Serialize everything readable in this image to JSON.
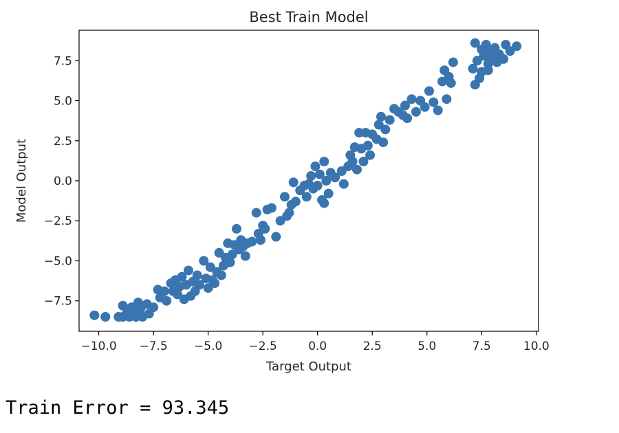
{
  "chart_data": {
    "type": "scatter",
    "title": "Best Train Model",
    "xlabel": "Target Output",
    "ylabel": "Model Output",
    "xlim": [
      -10.9,
      10.1
    ],
    "ylim": [
      -9.4,
      9.4
    ],
    "xticks": [
      -10.0,
      -7.5,
      -5.0,
      -2.5,
      0.0,
      2.5,
      5.0,
      7.5,
      10.0
    ],
    "xtick_labels": [
      "−10.0",
      "−7.5",
      "−5.0",
      "−2.5",
      "0.0",
      "2.5",
      "5.0",
      "7.5",
      "10.0"
    ],
    "yticks": [
      -7.5,
      -5.0,
      -2.5,
      0.0,
      2.5,
      5.0,
      7.5
    ],
    "ytick_labels": [
      "−7.5",
      "−5.0",
      "−2.5",
      "0.0",
      "2.5",
      "5.0",
      "7.5"
    ],
    "grid": false,
    "marker_color": "#3a75b0",
    "points": [
      [
        -10.2,
        -8.4
      ],
      [
        -9.7,
        -8.5
      ],
      [
        -9.1,
        -8.5
      ],
      [
        -8.9,
        -8.5
      ],
      [
        -8.9,
        -7.8
      ],
      [
        -8.7,
        -8.2
      ],
      [
        -8.6,
        -8.5
      ],
      [
        -8.5,
        -7.9
      ],
      [
        -8.4,
        -8.1
      ],
      [
        -8.3,
        -8.5
      ],
      [
        -8.2,
        -7.6
      ],
      [
        -8.1,
        -8.0
      ],
      [
        -8.0,
        -8.5
      ],
      [
        -7.8,
        -7.7
      ],
      [
        -7.7,
        -8.3
      ],
      [
        -7.5,
        -7.9
      ],
      [
        -7.3,
        -6.8
      ],
      [
        -7.2,
        -7.3
      ],
      [
        -7.0,
        -6.9
      ],
      [
        -6.9,
        -7.5
      ],
      [
        -6.7,
        -6.4
      ],
      [
        -6.6,
        -6.9
      ],
      [
        -6.5,
        -6.2
      ],
      [
        -6.4,
        -7.1
      ],
      [
        -6.3,
        -6.6
      ],
      [
        -6.2,
        -6.0
      ],
      [
        -6.1,
        -7.4
      ],
      [
        -6.0,
        -6.5
      ],
      [
        -5.9,
        -5.6
      ],
      [
        -5.8,
        -7.2
      ],
      [
        -5.7,
        -6.3
      ],
      [
        -5.6,
        -6.9
      ],
      [
        -5.5,
        -5.9
      ],
      [
        -5.4,
        -6.5
      ],
      [
        -5.2,
        -5.0
      ],
      [
        -5.1,
        -6.1
      ],
      [
        -5.0,
        -6.7
      ],
      [
        -4.9,
        -5.4
      ],
      [
        -4.8,
        -6.2
      ],
      [
        -4.7,
        -6.4
      ],
      [
        -4.6,
        -5.7
      ],
      [
        -4.5,
        -4.5
      ],
      [
        -4.4,
        -5.9
      ],
      [
        -4.3,
        -5.3
      ],
      [
        -4.2,
        -4.8
      ],
      [
        -4.1,
        -3.9
      ],
      [
        -4.0,
        -5.1
      ],
      [
        -3.9,
        -4.6
      ],
      [
        -3.8,
        -4.0
      ],
      [
        -3.7,
        -3.0
      ],
      [
        -3.6,
        -4.3
      ],
      [
        -3.5,
        -3.7
      ],
      [
        -3.4,
        -4.1
      ],
      [
        -3.3,
        -4.7
      ],
      [
        -3.2,
        -3.9
      ],
      [
        -3.0,
        -3.8
      ],
      [
        -2.8,
        -2.0
      ],
      [
        -2.7,
        -3.3
      ],
      [
        -2.6,
        -3.7
      ],
      [
        -2.5,
        -2.8
      ],
      [
        -2.4,
        -3.0
      ],
      [
        -2.3,
        -1.8
      ],
      [
        -2.1,
        -1.7
      ],
      [
        -1.9,
        -3.5
      ],
      [
        -1.7,
        -2.5
      ],
      [
        -1.5,
        -1.0
      ],
      [
        -1.4,
        -2.2
      ],
      [
        -1.3,
        -2.0
      ],
      [
        -1.2,
        -1.5
      ],
      [
        -1.1,
        -0.1
      ],
      [
        -1.0,
        -1.3
      ],
      [
        -0.8,
        -0.6
      ],
      [
        -0.6,
        -0.3
      ],
      [
        -0.5,
        -1.0
      ],
      [
        -0.4,
        -0.2
      ],
      [
        -0.3,
        0.3
      ],
      [
        -0.2,
        -0.5
      ],
      [
        -0.1,
        0.9
      ],
      [
        0.0,
        -0.3
      ],
      [
        0.1,
        0.4
      ],
      [
        0.2,
        -1.2
      ],
      [
        0.3,
        1.2
      ],
      [
        0.3,
        -1.4
      ],
      [
        0.4,
        0.0
      ],
      [
        0.5,
        -0.8
      ],
      [
        0.6,
        0.5
      ],
      [
        0.8,
        0.2
      ],
      [
        1.1,
        0.6
      ],
      [
        1.2,
        -0.2
      ],
      [
        1.4,
        0.9
      ],
      [
        1.5,
        1.6
      ],
      [
        1.6,
        1.2
      ],
      [
        1.7,
        2.1
      ],
      [
        1.8,
        0.7
      ],
      [
        1.9,
        3.0
      ],
      [
        2.0,
        2.0
      ],
      [
        2.1,
        1.2
      ],
      [
        2.2,
        3.0
      ],
      [
        2.3,
        2.2
      ],
      [
        2.4,
        1.6
      ],
      [
        2.5,
        2.9
      ],
      [
        2.7,
        2.6
      ],
      [
        2.8,
        3.5
      ],
      [
        2.9,
        4.0
      ],
      [
        3.0,
        2.4
      ],
      [
        3.1,
        3.2
      ],
      [
        3.3,
        3.8
      ],
      [
        3.5,
        4.5
      ],
      [
        3.7,
        4.3
      ],
      [
        3.9,
        4.1
      ],
      [
        4.0,
        4.7
      ],
      [
        4.1,
        3.9
      ],
      [
        4.3,
        5.1
      ],
      [
        4.5,
        4.3
      ],
      [
        4.7,
        5.0
      ],
      [
        4.9,
        4.6
      ],
      [
        5.1,
        5.6
      ],
      [
        5.3,
        4.9
      ],
      [
        5.5,
        4.4
      ],
      [
        5.7,
        6.2
      ],
      [
        5.8,
        6.9
      ],
      [
        5.9,
        5.1
      ],
      [
        6.0,
        6.5
      ],
      [
        6.1,
        6.1
      ],
      [
        6.2,
        7.4
      ],
      [
        7.1,
        7.0
      ],
      [
        7.2,
        6.0
      ],
      [
        7.2,
        8.6
      ],
      [
        7.3,
        7.5
      ],
      [
        7.4,
        6.4
      ],
      [
        7.5,
        8.2
      ],
      [
        7.5,
        6.8
      ],
      [
        7.6,
        7.8
      ],
      [
        7.7,
        8.5
      ],
      [
        7.8,
        7.3
      ],
      [
        7.8,
        6.9
      ],
      [
        7.9,
        8.0
      ],
      [
        8.0,
        7.6
      ],
      [
        8.1,
        8.3
      ],
      [
        8.2,
        7.4
      ],
      [
        8.3,
        7.9
      ],
      [
        8.5,
        7.6
      ],
      [
        8.6,
        8.5
      ],
      [
        8.8,
        8.1
      ],
      [
        9.1,
        8.4
      ]
    ]
  },
  "output": {
    "text": "Train Error = 93.345"
  }
}
